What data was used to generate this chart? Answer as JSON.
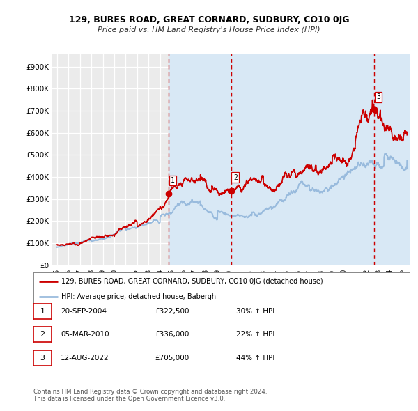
{
  "title": "129, BURES ROAD, GREAT CORNARD, SUDBURY, CO10 0JG",
  "subtitle": "Price paid vs. HM Land Registry's House Price Index (HPI)",
  "ylabel_ticks": [
    "£0",
    "£100K",
    "£200K",
    "£300K",
    "£400K",
    "£500K",
    "£600K",
    "£700K",
    "£800K",
    "£900K"
  ],
  "ytick_values": [
    0,
    100000,
    200000,
    300000,
    400000,
    500000,
    600000,
    700000,
    800000,
    900000
  ],
  "ylim": [
    0,
    960000
  ],
  "xlim_start": 1994.6,
  "xlim_end": 2025.8,
  "sale_dates": [
    2004.72,
    2010.17,
    2022.62
  ],
  "sale_prices": [
    322500,
    336000,
    705000
  ],
  "sale_labels": [
    "1",
    "2",
    "3"
  ],
  "vline_color": "#cc0000",
  "highlight_color": "#d8e8f5",
  "legend_label_red": "129, BURES ROAD, GREAT CORNARD, SUDBURY, CO10 0JG (detached house)",
  "legend_label_blue": "HPI: Average price, detached house, Babergh",
  "table_rows": [
    [
      "1",
      "20-SEP-2004",
      "£322,500",
      "30% ↑ HPI"
    ],
    [
      "2",
      "05-MAR-2010",
      "£336,000",
      "22% ↑ HPI"
    ],
    [
      "3",
      "12-AUG-2022",
      "£705,000",
      "44% ↑ HPI"
    ]
  ],
  "footnote": "Contains HM Land Registry data © Crown copyright and database right 2024.\nThis data is licensed under the Open Government Licence v3.0.",
  "background_color": "#ffffff",
  "plot_bg_color": "#ebebeb",
  "red_color": "#cc0000",
  "blue_color": "#99bbdd"
}
